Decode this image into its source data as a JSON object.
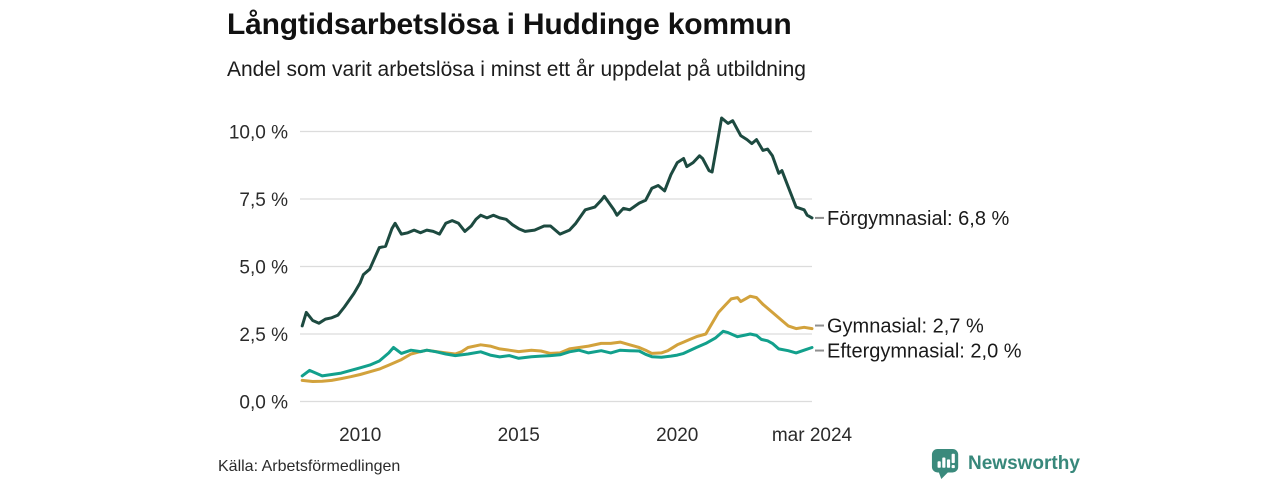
{
  "header": {
    "title": "Långtidsarbetslösa i Huddinge kommun",
    "subtitle": "Andel som varit arbetslösa i minst ett år uppdelat på utbildning"
  },
  "footer": {
    "source": "Källa: Arbetsförmedlingen",
    "brand": "Newsworthy"
  },
  "colors": {
    "grid": "#dcdcdc",
    "axis_text": "#2b2b2b",
    "series_label_text": "#1a1a1a",
    "label_dash": "#8f8f8f",
    "brand": "#3a8a7c"
  },
  "chart_data": {
    "type": "line",
    "title": "Långtidsarbetslösa i Huddinge kommun",
    "subtitle": "Andel som varit arbetslösa i minst ett år uppdelat på utbildning",
    "unit": "%",
    "grid": "horizontal",
    "legend_position": "right-end-labels",
    "x_axis": {
      "min": 2008.1,
      "max": 2024.25,
      "ticks": [
        {
          "label": "2010",
          "x": 2010
        },
        {
          "label": "2015",
          "x": 2015
        },
        {
          "label": "2020",
          "x": 2020
        },
        {
          "label": "mar 2024",
          "x": 2024.25
        }
      ]
    },
    "y_axis": {
      "min": 0,
      "max": 10,
      "ticks": [
        {
          "label": "10,0 %",
          "y": 10
        },
        {
          "label": "7,5 %",
          "y": 7.5
        },
        {
          "label": "5,0 %",
          "y": 5
        },
        {
          "label": "2,5 %",
          "y": 2.5
        },
        {
          "label": "0,0 %",
          "y": 0
        }
      ]
    },
    "series": [
      {
        "name": "Förgymnasial",
        "end_label": "Förgymnasial: 6,8 %",
        "last_value": 6.8,
        "color": "#1d4a40",
        "points": [
          [
            2008.17,
            2.8
          ],
          [
            2008.3,
            3.3
          ],
          [
            2008.5,
            3.0
          ],
          [
            2008.7,
            2.9
          ],
          [
            2008.9,
            3.05
          ],
          [
            2009.1,
            3.1
          ],
          [
            2009.3,
            3.2
          ],
          [
            2009.5,
            3.5
          ],
          [
            2009.8,
            4.0
          ],
          [
            2010.0,
            4.4
          ],
          [
            2010.1,
            4.7
          ],
          [
            2010.3,
            4.9
          ],
          [
            2010.45,
            5.3
          ],
          [
            2010.6,
            5.7
          ],
          [
            2010.8,
            5.75
          ],
          [
            2011.0,
            6.4
          ],
          [
            2011.1,
            6.6
          ],
          [
            2011.3,
            6.2
          ],
          [
            2011.5,
            6.25
          ],
          [
            2011.7,
            6.35
          ],
          [
            2011.9,
            6.25
          ],
          [
            2012.1,
            6.35
          ],
          [
            2012.3,
            6.3
          ],
          [
            2012.5,
            6.2
          ],
          [
            2012.7,
            6.6
          ],
          [
            2012.9,
            6.7
          ],
          [
            2013.1,
            6.6
          ],
          [
            2013.3,
            6.3
          ],
          [
            2013.5,
            6.5
          ],
          [
            2013.65,
            6.75
          ],
          [
            2013.8,
            6.9
          ],
          [
            2014.0,
            6.8
          ],
          [
            2014.2,
            6.9
          ],
          [
            2014.4,
            6.8
          ],
          [
            2014.6,
            6.75
          ],
          [
            2014.8,
            6.55
          ],
          [
            2015.0,
            6.4
          ],
          [
            2015.2,
            6.3
          ],
          [
            2015.5,
            6.35
          ],
          [
            2015.8,
            6.5
          ],
          [
            2016.0,
            6.5
          ],
          [
            2016.3,
            6.2
          ],
          [
            2016.6,
            6.35
          ],
          [
            2016.8,
            6.6
          ],
          [
            2017.1,
            7.1
          ],
          [
            2017.4,
            7.2
          ],
          [
            2017.6,
            7.45
          ],
          [
            2017.7,
            7.6
          ],
          [
            2018.0,
            7.1
          ],
          [
            2018.1,
            6.9
          ],
          [
            2018.3,
            7.15
          ],
          [
            2018.5,
            7.1
          ],
          [
            2018.8,
            7.35
          ],
          [
            2019.0,
            7.45
          ],
          [
            2019.2,
            7.9
          ],
          [
            2019.4,
            8.0
          ],
          [
            2019.6,
            7.8
          ],
          [
            2019.8,
            8.4
          ],
          [
            2020.0,
            8.85
          ],
          [
            2020.2,
            9.0
          ],
          [
            2020.3,
            8.7
          ],
          [
            2020.5,
            8.85
          ],
          [
            2020.7,
            9.1
          ],
          [
            2020.8,
            9.0
          ],
          [
            2021.0,
            8.55
          ],
          [
            2021.1,
            8.5
          ],
          [
            2021.25,
            9.5
          ],
          [
            2021.4,
            10.5
          ],
          [
            2021.6,
            10.3
          ],
          [
            2021.75,
            10.4
          ],
          [
            2022.0,
            9.85
          ],
          [
            2022.2,
            9.7
          ],
          [
            2022.35,
            9.55
          ],
          [
            2022.5,
            9.7
          ],
          [
            2022.7,
            9.3
          ],
          [
            2022.85,
            9.35
          ],
          [
            2023.0,
            9.1
          ],
          [
            2023.2,
            8.45
          ],
          [
            2023.3,
            8.55
          ],
          [
            2023.5,
            7.95
          ],
          [
            2023.75,
            7.2
          ],
          [
            2024.0,
            7.1
          ],
          [
            2024.1,
            6.9
          ],
          [
            2024.25,
            6.8
          ]
        ]
      },
      {
        "name": "Gymnasial",
        "end_label": "Gymnasial: 2,7 %",
        "last_value": 2.7,
        "color": "#d2a23c",
        "points": [
          [
            2008.17,
            0.78
          ],
          [
            2008.5,
            0.74
          ],
          [
            2008.8,
            0.75
          ],
          [
            2009.1,
            0.78
          ],
          [
            2009.4,
            0.85
          ],
          [
            2009.7,
            0.92
          ],
          [
            2010.0,
            1.0
          ],
          [
            2010.3,
            1.1
          ],
          [
            2010.6,
            1.2
          ],
          [
            2010.9,
            1.35
          ],
          [
            2011.1,
            1.45
          ],
          [
            2011.3,
            1.55
          ],
          [
            2011.6,
            1.76
          ],
          [
            2011.9,
            1.85
          ],
          [
            2012.1,
            1.9
          ],
          [
            2012.4,
            1.85
          ],
          [
            2012.7,
            1.8
          ],
          [
            2013.0,
            1.76
          ],
          [
            2013.2,
            1.85
          ],
          [
            2013.4,
            2.0
          ],
          [
            2013.8,
            2.1
          ],
          [
            2014.1,
            2.05
          ],
          [
            2014.4,
            1.95
          ],
          [
            2014.7,
            1.9
          ],
          [
            2015.0,
            1.85
          ],
          [
            2015.4,
            1.9
          ],
          [
            2015.7,
            1.87
          ],
          [
            2016.0,
            1.78
          ],
          [
            2016.3,
            1.8
          ],
          [
            2016.6,
            1.95
          ],
          [
            2016.9,
            2.0
          ],
          [
            2017.2,
            2.05
          ],
          [
            2017.6,
            2.15
          ],
          [
            2017.9,
            2.15
          ],
          [
            2018.2,
            2.2
          ],
          [
            2018.5,
            2.1
          ],
          [
            2018.8,
            2.0
          ],
          [
            2019.0,
            1.9
          ],
          [
            2019.2,
            1.78
          ],
          [
            2019.5,
            1.8
          ],
          [
            2019.7,
            1.88
          ],
          [
            2020.0,
            2.1
          ],
          [
            2020.2,
            2.2
          ],
          [
            2020.4,
            2.3
          ],
          [
            2020.6,
            2.4
          ],
          [
            2020.9,
            2.5
          ],
          [
            2021.1,
            2.9
          ],
          [
            2021.3,
            3.3
          ],
          [
            2021.5,
            3.55
          ],
          [
            2021.7,
            3.8
          ],
          [
            2021.9,
            3.85
          ],
          [
            2022.0,
            3.7
          ],
          [
            2022.15,
            3.8
          ],
          [
            2022.3,
            3.9
          ],
          [
            2022.5,
            3.85
          ],
          [
            2022.7,
            3.6
          ],
          [
            2023.0,
            3.3
          ],
          [
            2023.3,
            3.0
          ],
          [
            2023.5,
            2.8
          ],
          [
            2023.75,
            2.7
          ],
          [
            2024.0,
            2.75
          ],
          [
            2024.25,
            2.7
          ]
        ]
      },
      {
        "name": "Eftergymnasial",
        "end_label": "Eftergymnasial: 2,0 %",
        "last_value": 2.0,
        "color": "#12a08c",
        "points": [
          [
            2008.17,
            0.95
          ],
          [
            2008.4,
            1.15
          ],
          [
            2008.6,
            1.05
          ],
          [
            2008.8,
            0.95
          ],
          [
            2009.1,
            1.0
          ],
          [
            2009.4,
            1.05
          ],
          [
            2009.7,
            1.15
          ],
          [
            2010.0,
            1.25
          ],
          [
            2010.3,
            1.35
          ],
          [
            2010.6,
            1.5
          ],
          [
            2010.9,
            1.8
          ],
          [
            2011.05,
            2.0
          ],
          [
            2011.3,
            1.78
          ],
          [
            2011.6,
            1.9
          ],
          [
            2011.9,
            1.85
          ],
          [
            2012.1,
            1.9
          ],
          [
            2012.4,
            1.84
          ],
          [
            2012.7,
            1.76
          ],
          [
            2013.0,
            1.7
          ],
          [
            2013.4,
            1.76
          ],
          [
            2013.8,
            1.84
          ],
          [
            2014.1,
            1.72
          ],
          [
            2014.4,
            1.65
          ],
          [
            2014.7,
            1.7
          ],
          [
            2015.0,
            1.6
          ],
          [
            2015.4,
            1.66
          ],
          [
            2015.7,
            1.68
          ],
          [
            2016.0,
            1.7
          ],
          [
            2016.3,
            1.73
          ],
          [
            2016.6,
            1.84
          ],
          [
            2016.9,
            1.9
          ],
          [
            2017.2,
            1.8
          ],
          [
            2017.6,
            1.88
          ],
          [
            2017.9,
            1.8
          ],
          [
            2018.2,
            1.9
          ],
          [
            2018.5,
            1.88
          ],
          [
            2018.8,
            1.87
          ],
          [
            2019.0,
            1.75
          ],
          [
            2019.2,
            1.66
          ],
          [
            2019.5,
            1.64
          ],
          [
            2019.8,
            1.68
          ],
          [
            2020.0,
            1.72
          ],
          [
            2020.2,
            1.78
          ],
          [
            2020.6,
            2.0
          ],
          [
            2020.9,
            2.15
          ],
          [
            2021.2,
            2.35
          ],
          [
            2021.45,
            2.6
          ],
          [
            2021.6,
            2.55
          ],
          [
            2021.7,
            2.5
          ],
          [
            2021.9,
            2.4
          ],
          [
            2022.1,
            2.45
          ],
          [
            2022.3,
            2.5
          ],
          [
            2022.5,
            2.45
          ],
          [
            2022.65,
            2.3
          ],
          [
            2022.85,
            2.25
          ],
          [
            2023.0,
            2.15
          ],
          [
            2023.2,
            1.95
          ],
          [
            2023.5,
            1.88
          ],
          [
            2023.75,
            1.8
          ],
          [
            2024.0,
            1.9
          ],
          [
            2024.25,
            2.0
          ]
        ]
      }
    ]
  }
}
